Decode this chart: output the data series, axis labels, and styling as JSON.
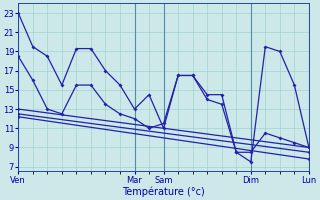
{
  "background_color": "#cce8e8",
  "grid_color": "#99cccc",
  "line_color": "#2222aa",
  "xlabel": "Température (°c)",
  "yticks": [
    7,
    9,
    11,
    13,
    15,
    17,
    19,
    21,
    23
  ],
  "ylim": [
    6.5,
    24.0
  ],
  "xlim": [
    0,
    20
  ],
  "xtick_pos": [
    0,
    8,
    10,
    16,
    20
  ],
  "xtick_lab": [
    "Ven",
    "Mar",
    "Sam",
    "Dim",
    "Lun"
  ],
  "line1_x": [
    0,
    1,
    2,
    3,
    4,
    5,
    6,
    7,
    8,
    9,
    10,
    11,
    12,
    13,
    14,
    15,
    16,
    17,
    18,
    19,
    20
  ],
  "line1_y": [
    23,
    19.5,
    18.5,
    15.5,
    19.3,
    19.3,
    17.0,
    15.5,
    13.0,
    14.5,
    11.0,
    16.5,
    16.5,
    14.5,
    14.5,
    8.5,
    7.5,
    19.5,
    19.0,
    15.5,
    9.0
  ],
  "line2_x": [
    0,
    1,
    2,
    3,
    4,
    5,
    6,
    7,
    8,
    9,
    10,
    11,
    12,
    13,
    14,
    15,
    16,
    17,
    18,
    19,
    20
  ],
  "line2_y": [
    18.5,
    16.0,
    13.0,
    12.5,
    15.5,
    15.5,
    13.5,
    12.5,
    12.0,
    11.0,
    11.5,
    16.5,
    16.5,
    14.0,
    13.5,
    8.5,
    8.5,
    10.5,
    10.0,
    9.5,
    9.0
  ],
  "line3_x": [
    0,
    20
  ],
  "line3_y": [
    13.0,
    9.0
  ],
  "line4_x": [
    0,
    20
  ],
  "line4_y": [
    12.5,
    8.5
  ],
  "line5_x": [
    0,
    20
  ],
  "line5_y": [
    12.2,
    7.8
  ]
}
